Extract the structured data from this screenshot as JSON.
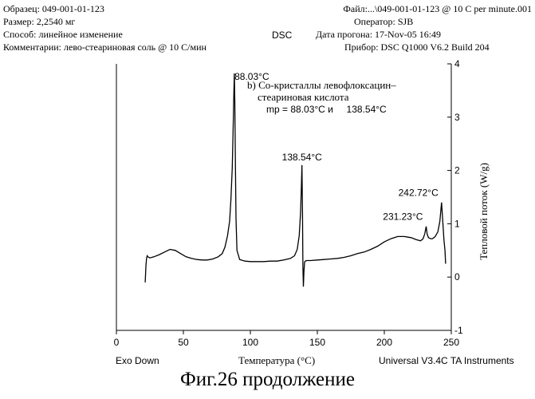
{
  "header": {
    "sample": "Образец: 049-001-01-123",
    "size": "Размер: 2,2540 мг",
    "method": "Способ: линейное изменение",
    "comments": "Комментарии: лево-стеариновая соль @ 10 С/мин",
    "dsc": "DSC",
    "file": "Файл:...\\049-001-01-123 @ 10 C per minute.001",
    "operator": "Оператор: SJB",
    "run_date": "Дата прогона: 17-Nov-05 16:49",
    "instrument": "Прибор: DSC Q1000 V6.2 Build 204"
  },
  "footer": {
    "exo": "Exo Down",
    "software": "Universal V3.4C TA Instruments"
  },
  "figure_caption": "Фиг.26 продолжение",
  "chart_data": {
    "type": "line",
    "xlabel": "Температура (°C)",
    "ylabel": "Тепловой поток (W/g)",
    "xlim": [
      0,
      250
    ],
    "ylim": [
      -1,
      4
    ],
    "x_ticks": [
      0,
      50,
      100,
      150,
      200,
      250
    ],
    "y_ticks": [
      -1,
      0,
      1,
      2,
      3,
      4
    ],
    "grid": false,
    "annotation": {
      "title": "b) Со-кристаллы левофлоксацин–",
      "title_line2": "стеариновая кислота",
      "mp": "mp = 88.03°C и     138.54°C"
    },
    "peak_labels": [
      {
        "text": "88.03°C",
        "x": 88.03,
        "y": 3.82
      },
      {
        "text": "138.54°C",
        "x": 138.54,
        "y": 2.1
      },
      {
        "text": "231.23°C",
        "x": 231.23,
        "y": 0.95
      },
      {
        "text": "242.72°C",
        "x": 242.72,
        "y": 1.4
      }
    ],
    "series": [
      {
        "x": [
          21.5,
          22,
          22.5,
          23,
          23.5,
          25,
          28,
          32,
          36,
          40,
          44,
          48,
          52,
          56,
          60,
          64,
          68,
          72,
          76,
          79,
          81,
          83,
          84.5,
          85.5,
          86.5,
          87.2,
          87.7,
          88.03,
          88.4,
          88.8,
          89.3,
          90,
          92,
          96,
          100,
          105,
          110,
          115,
          120,
          125,
          130,
          133,
          135,
          136.5,
          137.5,
          138.1,
          138.54,
          138.9,
          139.2,
          139.6,
          140,
          140.5,
          141,
          142,
          145,
          150,
          155,
          160,
          165,
          170,
          175,
          180,
          185,
          190,
          195,
          200,
          205,
          210,
          215,
          220,
          224,
          227,
          229,
          230.3,
          231.23,
          232,
          233,
          234.5,
          236,
          238,
          240,
          241.5,
          242.72,
          243.5,
          244.5,
          245.3,
          245.8
        ],
        "y": [
          -0.1,
          0.2,
          0.35,
          0.4,
          0.38,
          0.36,
          0.38,
          0.42,
          0.47,
          0.52,
          0.5,
          0.44,
          0.38,
          0.35,
          0.33,
          0.32,
          0.32,
          0.34,
          0.38,
          0.44,
          0.56,
          0.78,
          1.05,
          1.45,
          2.05,
          2.85,
          3.45,
          3.82,
          3.3,
          2.2,
          1.1,
          0.5,
          0.33,
          0.3,
          0.29,
          0.29,
          0.29,
          0.3,
          0.3,
          0.32,
          0.35,
          0.4,
          0.52,
          0.78,
          1.22,
          1.7,
          2.1,
          1.2,
          0.2,
          -0.18,
          0.1,
          0.28,
          0.3,
          0.31,
          0.31,
          0.32,
          0.33,
          0.34,
          0.35,
          0.37,
          0.4,
          0.44,
          0.47,
          0.52,
          0.58,
          0.66,
          0.72,
          0.76,
          0.76,
          0.74,
          0.7,
          0.68,
          0.72,
          0.82,
          0.95,
          0.8,
          0.74,
          0.72,
          0.72,
          0.76,
          0.85,
          1.05,
          1.4,
          1.1,
          0.7,
          0.5,
          0.25
        ]
      }
    ]
  }
}
